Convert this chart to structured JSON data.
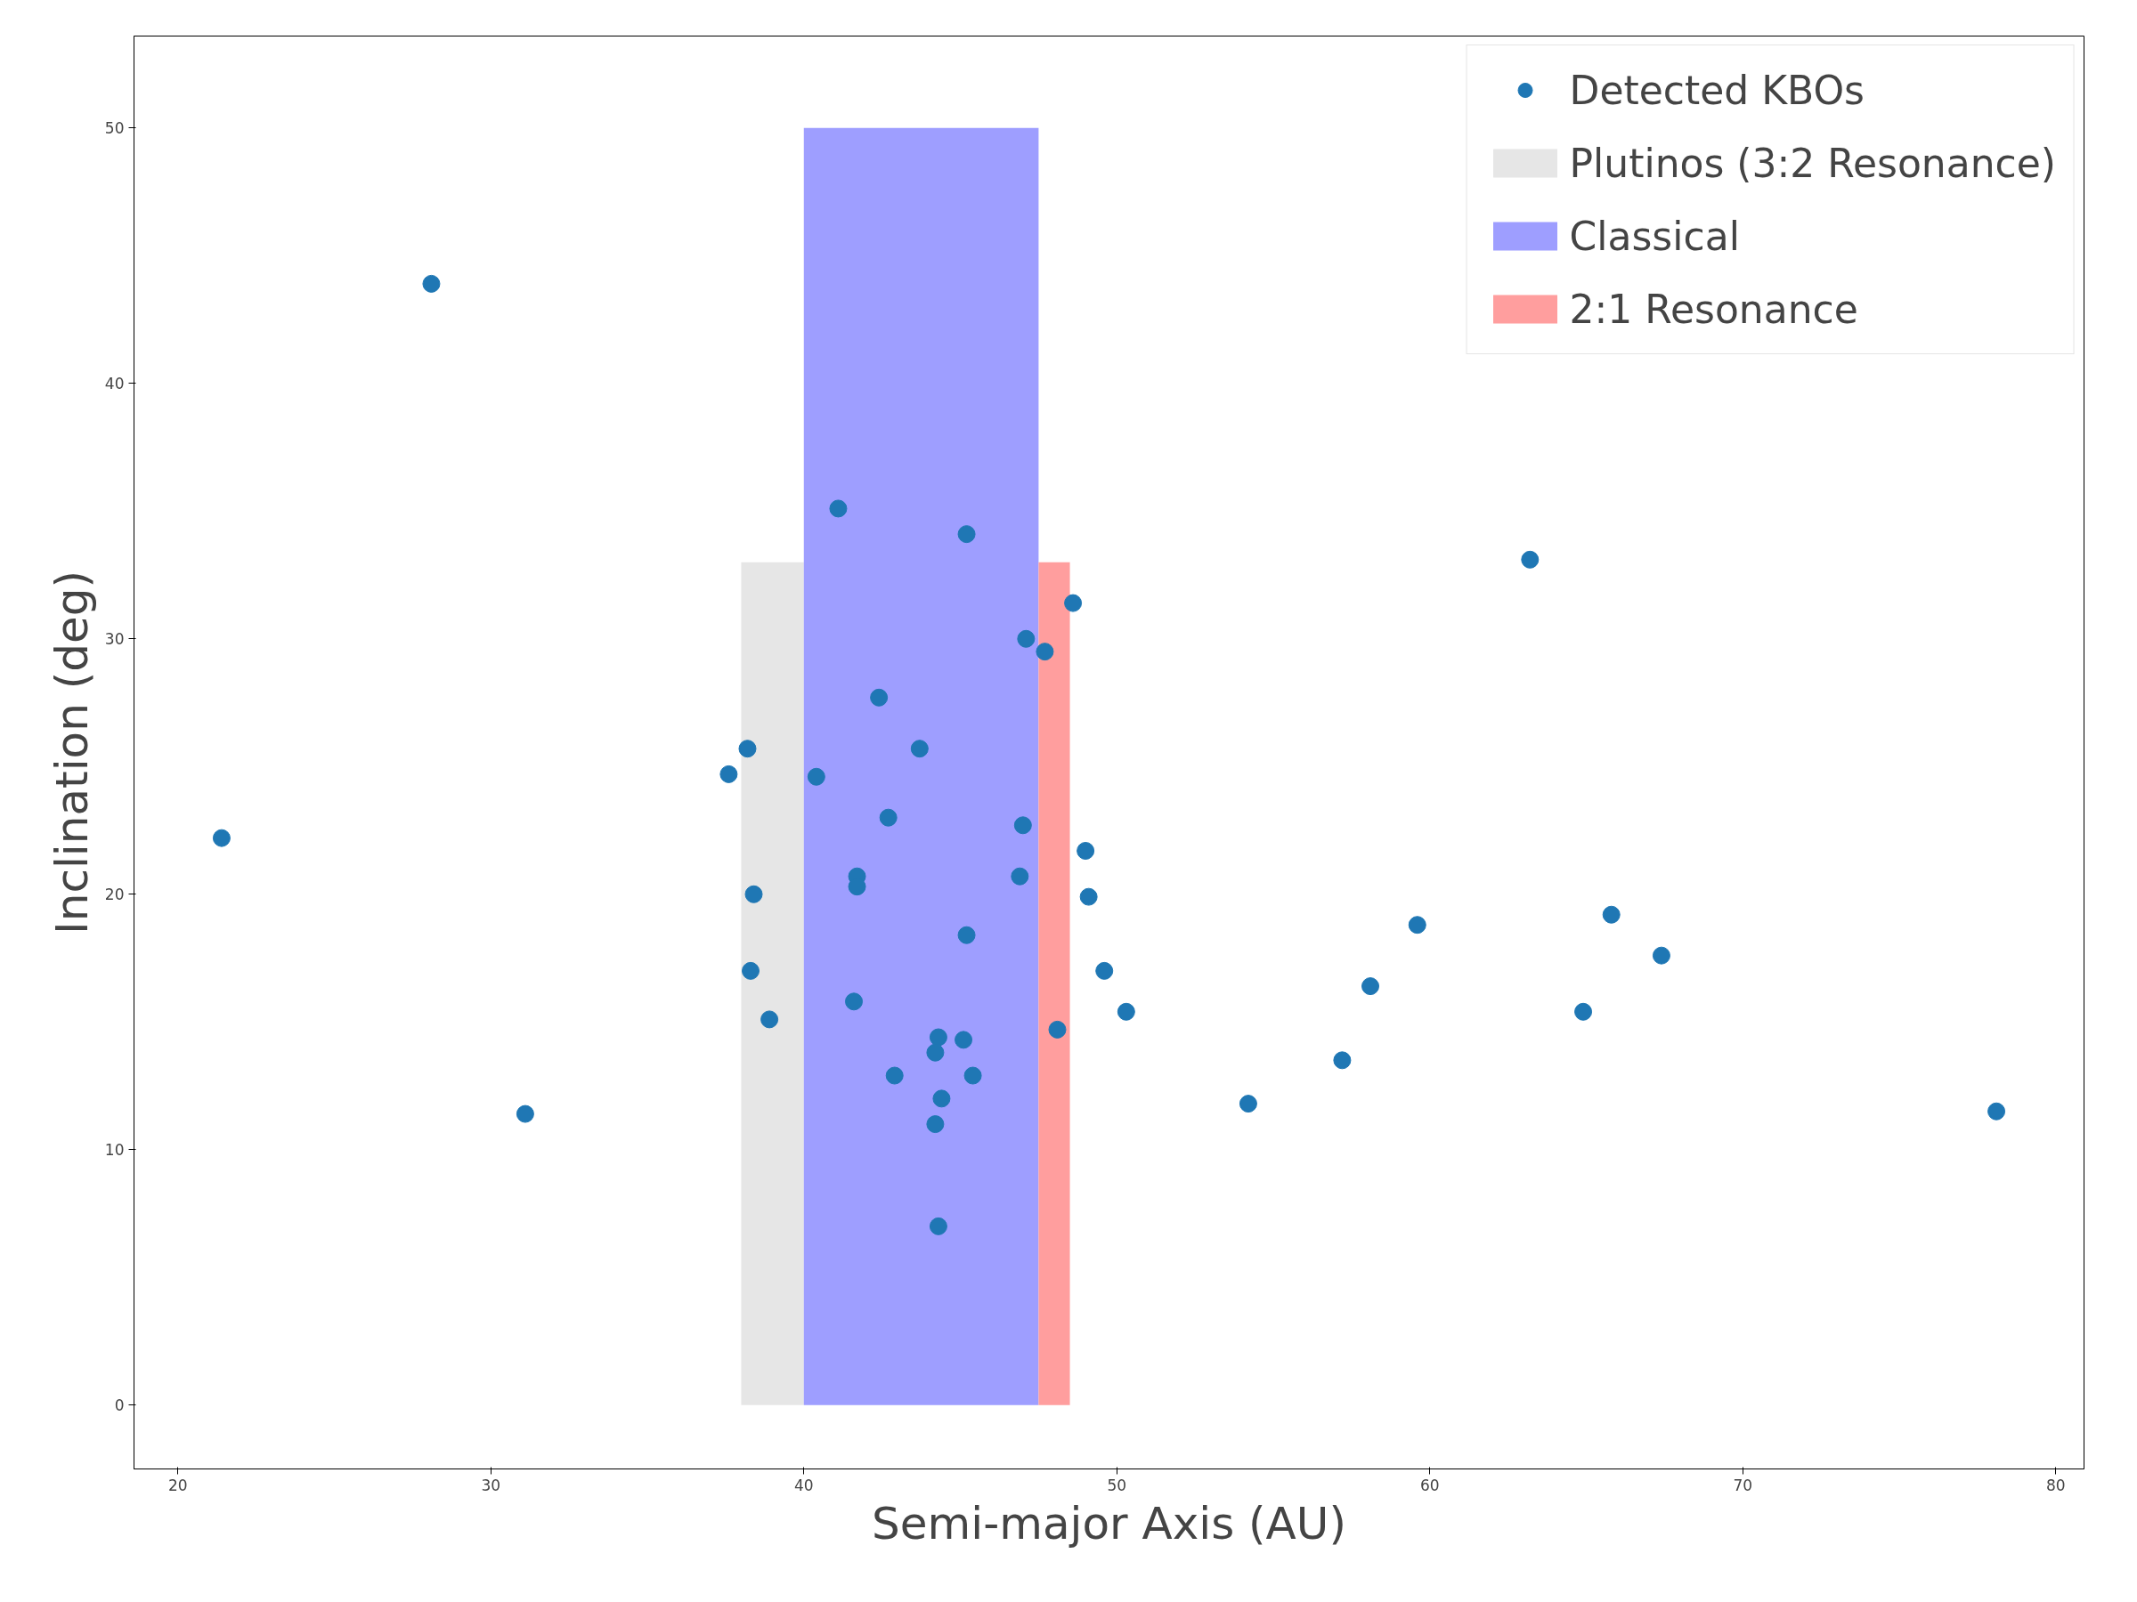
{
  "chart_data": {
    "type": "scatter",
    "xlabel": "Semi-major Axis (AU)",
    "ylabel": "Inclination (deg)",
    "xlim": [
      18.6,
      80.9
    ],
    "ylim": [
      -2.5,
      53.6
    ],
    "xticks": [
      20,
      30,
      40,
      50,
      60,
      70,
      80
    ],
    "yticks": [
      0,
      10,
      20,
      30,
      40,
      50
    ],
    "grid": false,
    "legend": "top right",
    "series": [
      {
        "name": "Detected KBOs",
        "marker": "circle",
        "color": "#1f77b4",
        "x": [
          21.4,
          28.1,
          31.1,
          37.6,
          38.2,
          38.4,
          38.3,
          38.9,
          40.4,
          41.1,
          41.7,
          41.7,
          41.6,
          42.4,
          42.7,
          42.9,
          43.7,
          44.3,
          44.2,
          44.4,
          44.2,
          44.3,
          45.1,
          45.2,
          45.2,
          45.4,
          46.9,
          47.0,
          47.1,
          47.7,
          48.1,
          48.6,
          49.0,
          49.1,
          49.6,
          50.3,
          54.2,
          57.2,
          58.1,
          59.6,
          63.2,
          64.9,
          65.8,
          67.4,
          78.1
        ],
        "values": [
          22.2,
          43.9,
          11.4,
          24.7,
          25.7,
          20.0,
          17.0,
          15.1,
          24.6,
          35.1,
          20.7,
          20.3,
          15.8,
          27.7,
          23.0,
          12.9,
          25.7,
          14.4,
          13.8,
          12.0,
          11.0,
          7.0,
          14.3,
          34.1,
          18.4,
          12.9,
          20.7,
          22.7,
          30.0,
          29.5,
          14.7,
          31.4,
          21.7,
          19.9,
          17.0,
          15.4,
          11.8,
          13.5,
          16.4,
          18.8,
          33.1,
          15.4,
          19.2,
          17.6,
          11.5
        ]
      },
      {
        "name": "Plutinos (3:2 Resonance)",
        "type": "area",
        "color": "#e6e6e6",
        "x": [
          38,
          40
        ],
        "values": [
          33,
          33
        ]
      },
      {
        "name": "Classical",
        "type": "area",
        "color": "#9e9eff",
        "x": [
          40,
          47.5
        ],
        "values": [
          50,
          50
        ]
      },
      {
        "name": "2:1 Resonance",
        "type": "area",
        "color": "#ff9e9e",
        "x": [
          47.5,
          48.5
        ],
        "values": [
          33,
          33
        ]
      }
    ]
  }
}
